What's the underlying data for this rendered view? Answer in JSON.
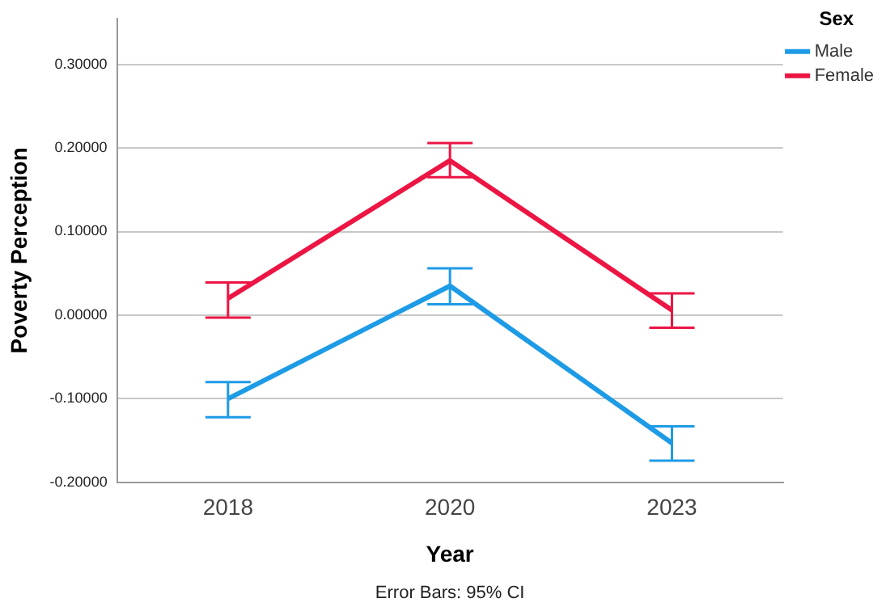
{
  "chart_data": {
    "type": "line",
    "xlabel": "Year",
    "ylabel": "Poverty Perception",
    "legend_title": "Sex",
    "categories": [
      "2018",
      "2020",
      "2023"
    ],
    "series": [
      {
        "name": "Male",
        "color": "#1e9be6",
        "values": [
          -0.1,
          0.035,
          -0.153
        ],
        "errors": [
          [
            -0.122,
            -0.08
          ],
          [
            0.013,
            0.056
          ],
          [
            -0.174,
            -0.133
          ]
        ]
      },
      {
        "name": "Female",
        "color": "#ec1543",
        "values": [
          0.02,
          0.185,
          0.006
        ],
        "errors": [
          [
            -0.003,
            0.039
          ],
          [
            0.165,
            0.206
          ],
          [
            -0.015,
            0.026
          ]
        ]
      }
    ],
    "ylim": [
      -0.2,
      0.355
    ],
    "yticks": [
      {
        "value": -0.2,
        "label": "-0.20000"
      },
      {
        "value": -0.1,
        "label": "-0.10000"
      },
      {
        "value": 0,
        "label": "0.00000"
      },
      {
        "value": 0.1,
        "label": "0.10000"
      },
      {
        "value": 0.2,
        "label": "0.20000"
      },
      {
        "value": 0.3,
        "label": "0.30000"
      }
    ],
    "grid": "y",
    "legend": "top right",
    "marker": "none",
    "line_style": "solid",
    "annotations": [
      "Error Bars: 95% CI"
    ]
  }
}
